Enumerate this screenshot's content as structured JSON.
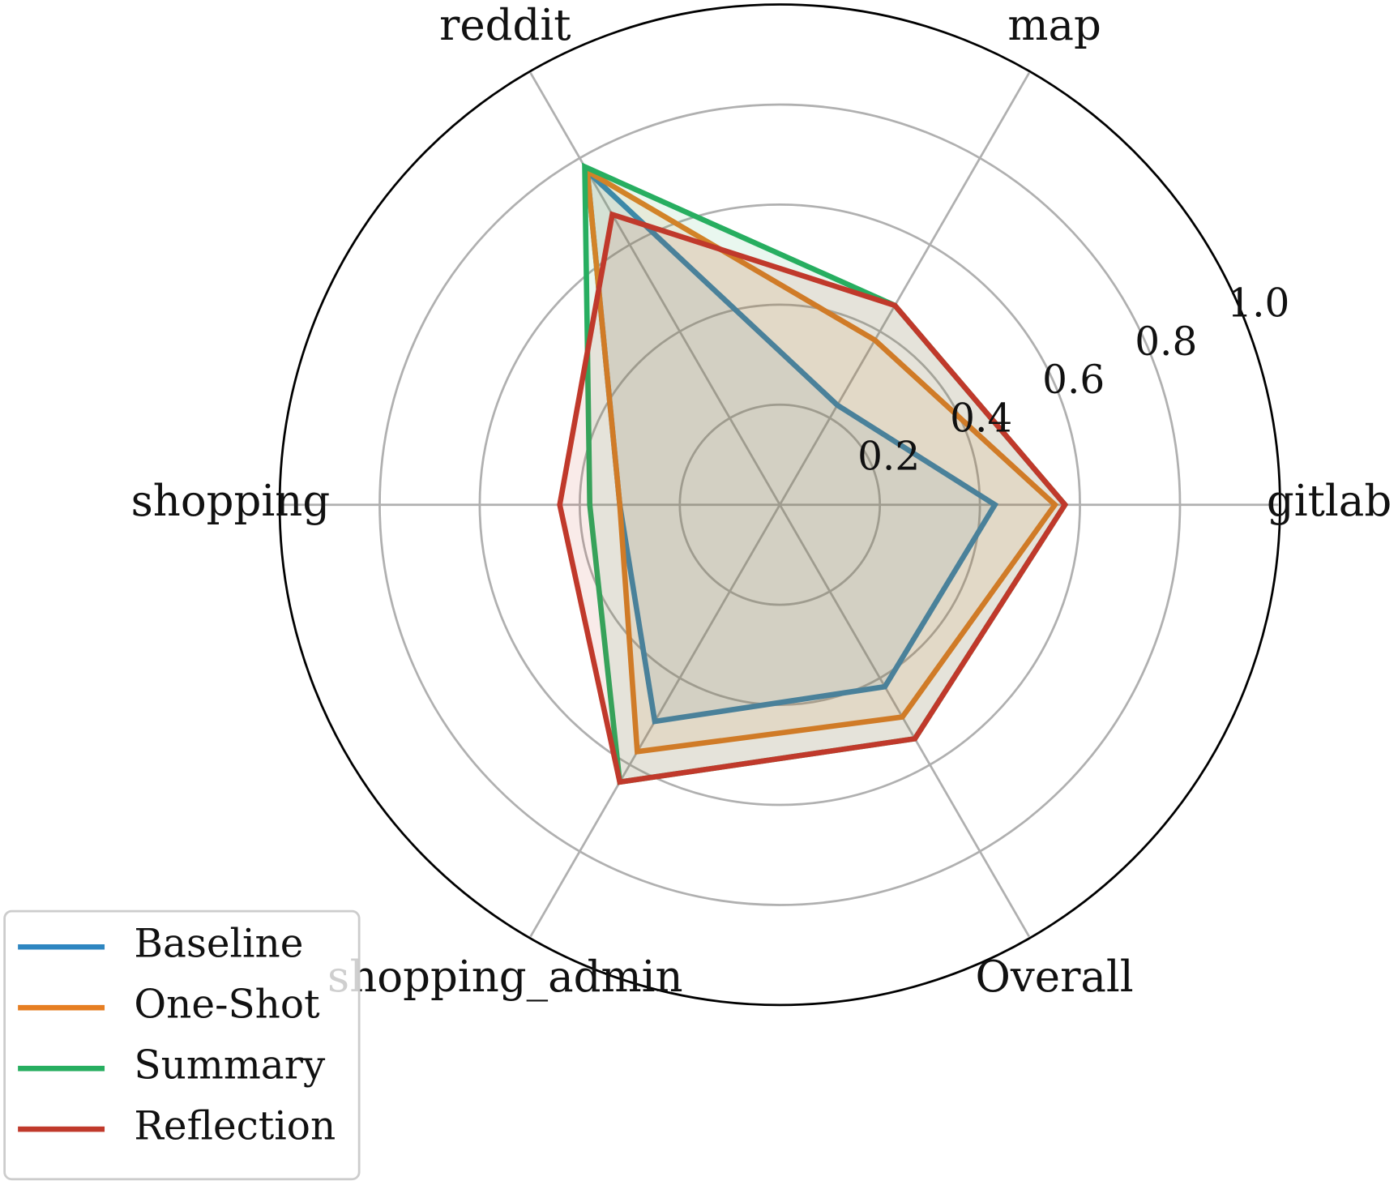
{
  "chart_data": {
    "type": "radar",
    "categories": [
      "gitlab",
      "map",
      "reddit",
      "shopping",
      "shopping_admin",
      "Overall"
    ],
    "series": [
      {
        "name": "Baseline",
        "color": "#2e86c1",
        "values": [
          0.43,
          0.23,
          0.77,
          0.32,
          0.5,
          0.42
        ]
      },
      {
        "name": "One-Shot",
        "color": "#e67e22",
        "values": [
          0.55,
          0.38,
          0.77,
          0.32,
          0.57,
          0.49
        ]
      },
      {
        "name": "Summary",
        "color": "#27ae60",
        "values": [
          0.57,
          0.46,
          0.78,
          0.38,
          0.64,
          0.54
        ]
      },
      {
        "name": "Reflection",
        "color": "#c0392b",
        "values": [
          0.57,
          0.46,
          0.67,
          0.44,
          0.64,
          0.54
        ]
      }
    ],
    "ylim": [
      0,
      1
    ],
    "yticks": [
      0.2,
      0.4,
      0.6,
      0.8,
      {
        "value": 1,
        "label": "1.0"
      }
    ],
    "grid": true,
    "legend": "lower left"
  }
}
